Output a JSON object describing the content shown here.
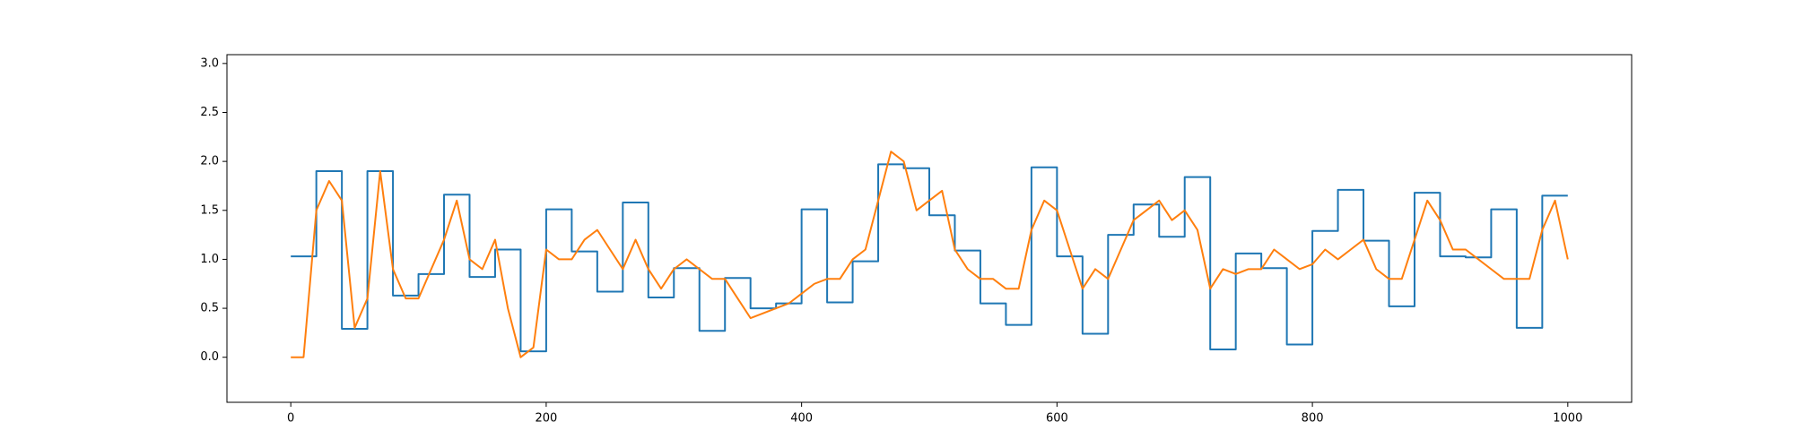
{
  "chart_data": {
    "type": "line",
    "xlim": [
      -50,
      1050
    ],
    "ylim": [
      -0.46,
      3.09
    ],
    "xticks": [
      0,
      200,
      400,
      600,
      800,
      1000
    ],
    "yticks": [
      {
        "value": 0,
        "label": "0.0"
      },
      {
        "value": 0.5,
        "label": "0.5"
      },
      {
        "value": 1,
        "label": "1.0"
      },
      {
        "value": 1.5,
        "label": "1.5"
      },
      {
        "value": 2,
        "label": "2.0"
      },
      {
        "value": 2.5,
        "label": "2.5"
      },
      {
        "value": 3,
        "label": "3.0"
      }
    ],
    "grid": false,
    "series": [
      {
        "color": "#1f77b4",
        "drawstyle": "steps-post",
        "x": [
          0,
          20,
          40,
          60,
          80,
          100,
          120,
          140,
          160,
          180,
          200,
          220,
          240,
          260,
          280,
          300,
          320,
          340,
          360,
          380,
          400,
          420,
          440,
          460,
          480,
          500,
          520,
          540,
          560,
          580,
          600,
          620,
          640,
          660,
          680,
          700,
          720,
          740,
          760,
          780,
          800,
          820,
          840,
          860,
          880,
          900,
          920,
          940,
          960,
          980,
          1000
        ],
        "values": [
          1.03,
          1.9,
          0.29,
          1.9,
          0.63,
          0.85,
          1.66,
          0.82,
          1.1,
          0.06,
          1.51,
          1.08,
          0.67,
          1.58,
          0.61,
          0.91,
          0.27,
          0.81,
          0.5,
          0.55,
          1.51,
          0.56,
          0.98,
          1.97,
          1.93,
          1.45,
          1.09,
          0.55,
          0.33,
          1.94,
          1.03,
          0.24,
          1.25,
          1.56,
          1.23,
          1.84,
          0.08,
          1.06,
          0.91,
          0.13,
          1.29,
          1.71,
          1.19,
          0.52,
          1.68,
          1.03,
          1.02,
          1.51,
          0.3,
          1.65,
          1.65
        ]
      },
      {
        "color": "#ff7f0e",
        "x": [
          0,
          10,
          20,
          30,
          40,
          50,
          60,
          70,
          80,
          90,
          100,
          110,
          120,
          130,
          140,
          150,
          160,
          170,
          180,
          190,
          200,
          210,
          220,
          230,
          240,
          250,
          260,
          270,
          280,
          290,
          300,
          310,
          320,
          330,
          340,
          350,
          360,
          370,
          380,
          390,
          400,
          410,
          420,
          430,
          440,
          450,
          460,
          470,
          480,
          490,
          500,
          510,
          520,
          530,
          540,
          550,
          560,
          570,
          580,
          590,
          600,
          610,
          620,
          630,
          640,
          650,
          660,
          670,
          680,
          690,
          700,
          710,
          720,
          730,
          740,
          750,
          760,
          770,
          780,
          790,
          800,
          810,
          820,
          830,
          840,
          850,
          860,
          870,
          880,
          890,
          900,
          910,
          920,
          930,
          940,
          950,
          960,
          970,
          980,
          990,
          1000
        ],
        "values": [
          0,
          0,
          1.5,
          1.8,
          1.6,
          0.3,
          0.6,
          1.9,
          0.9,
          0.6,
          0.6,
          0.9,
          1.2,
          1.6,
          1.0,
          0.9,
          1.2,
          0.5,
          0.0,
          0.1,
          1.1,
          1.0,
          1.0,
          1.2,
          1.3,
          1.1,
          0.9,
          1.2,
          0.9,
          0.7,
          0.9,
          1.0,
          0.9,
          0.8,
          0.8,
          0.6,
          0.4,
          0.45,
          0.5,
          0.55,
          0.65,
          0.75,
          0.8,
          0.8,
          1.0,
          1.1,
          1.6,
          2.1,
          2.0,
          1.5,
          1.6,
          1.7,
          1.1,
          0.9,
          0.8,
          0.8,
          0.7,
          0.7,
          1.3,
          1.6,
          1.5,
          1.1,
          0.7,
          0.9,
          0.8,
          1.1,
          1.4,
          1.5,
          1.6,
          1.4,
          1.5,
          1.3,
          0.7,
          0.9,
          0.85,
          0.9,
          0.9,
          1.1,
          1.0,
          0.9,
          0.95,
          1.1,
          1.0,
          1.1,
          1.2,
          0.9,
          0.8,
          0.8,
          1.2,
          1.6,
          1.4,
          1.1,
          1.1,
          1.0,
          0.9,
          0.8,
          0.8,
          0.8,
          1.3,
          1.6,
          1.0
        ]
      }
    ]
  }
}
